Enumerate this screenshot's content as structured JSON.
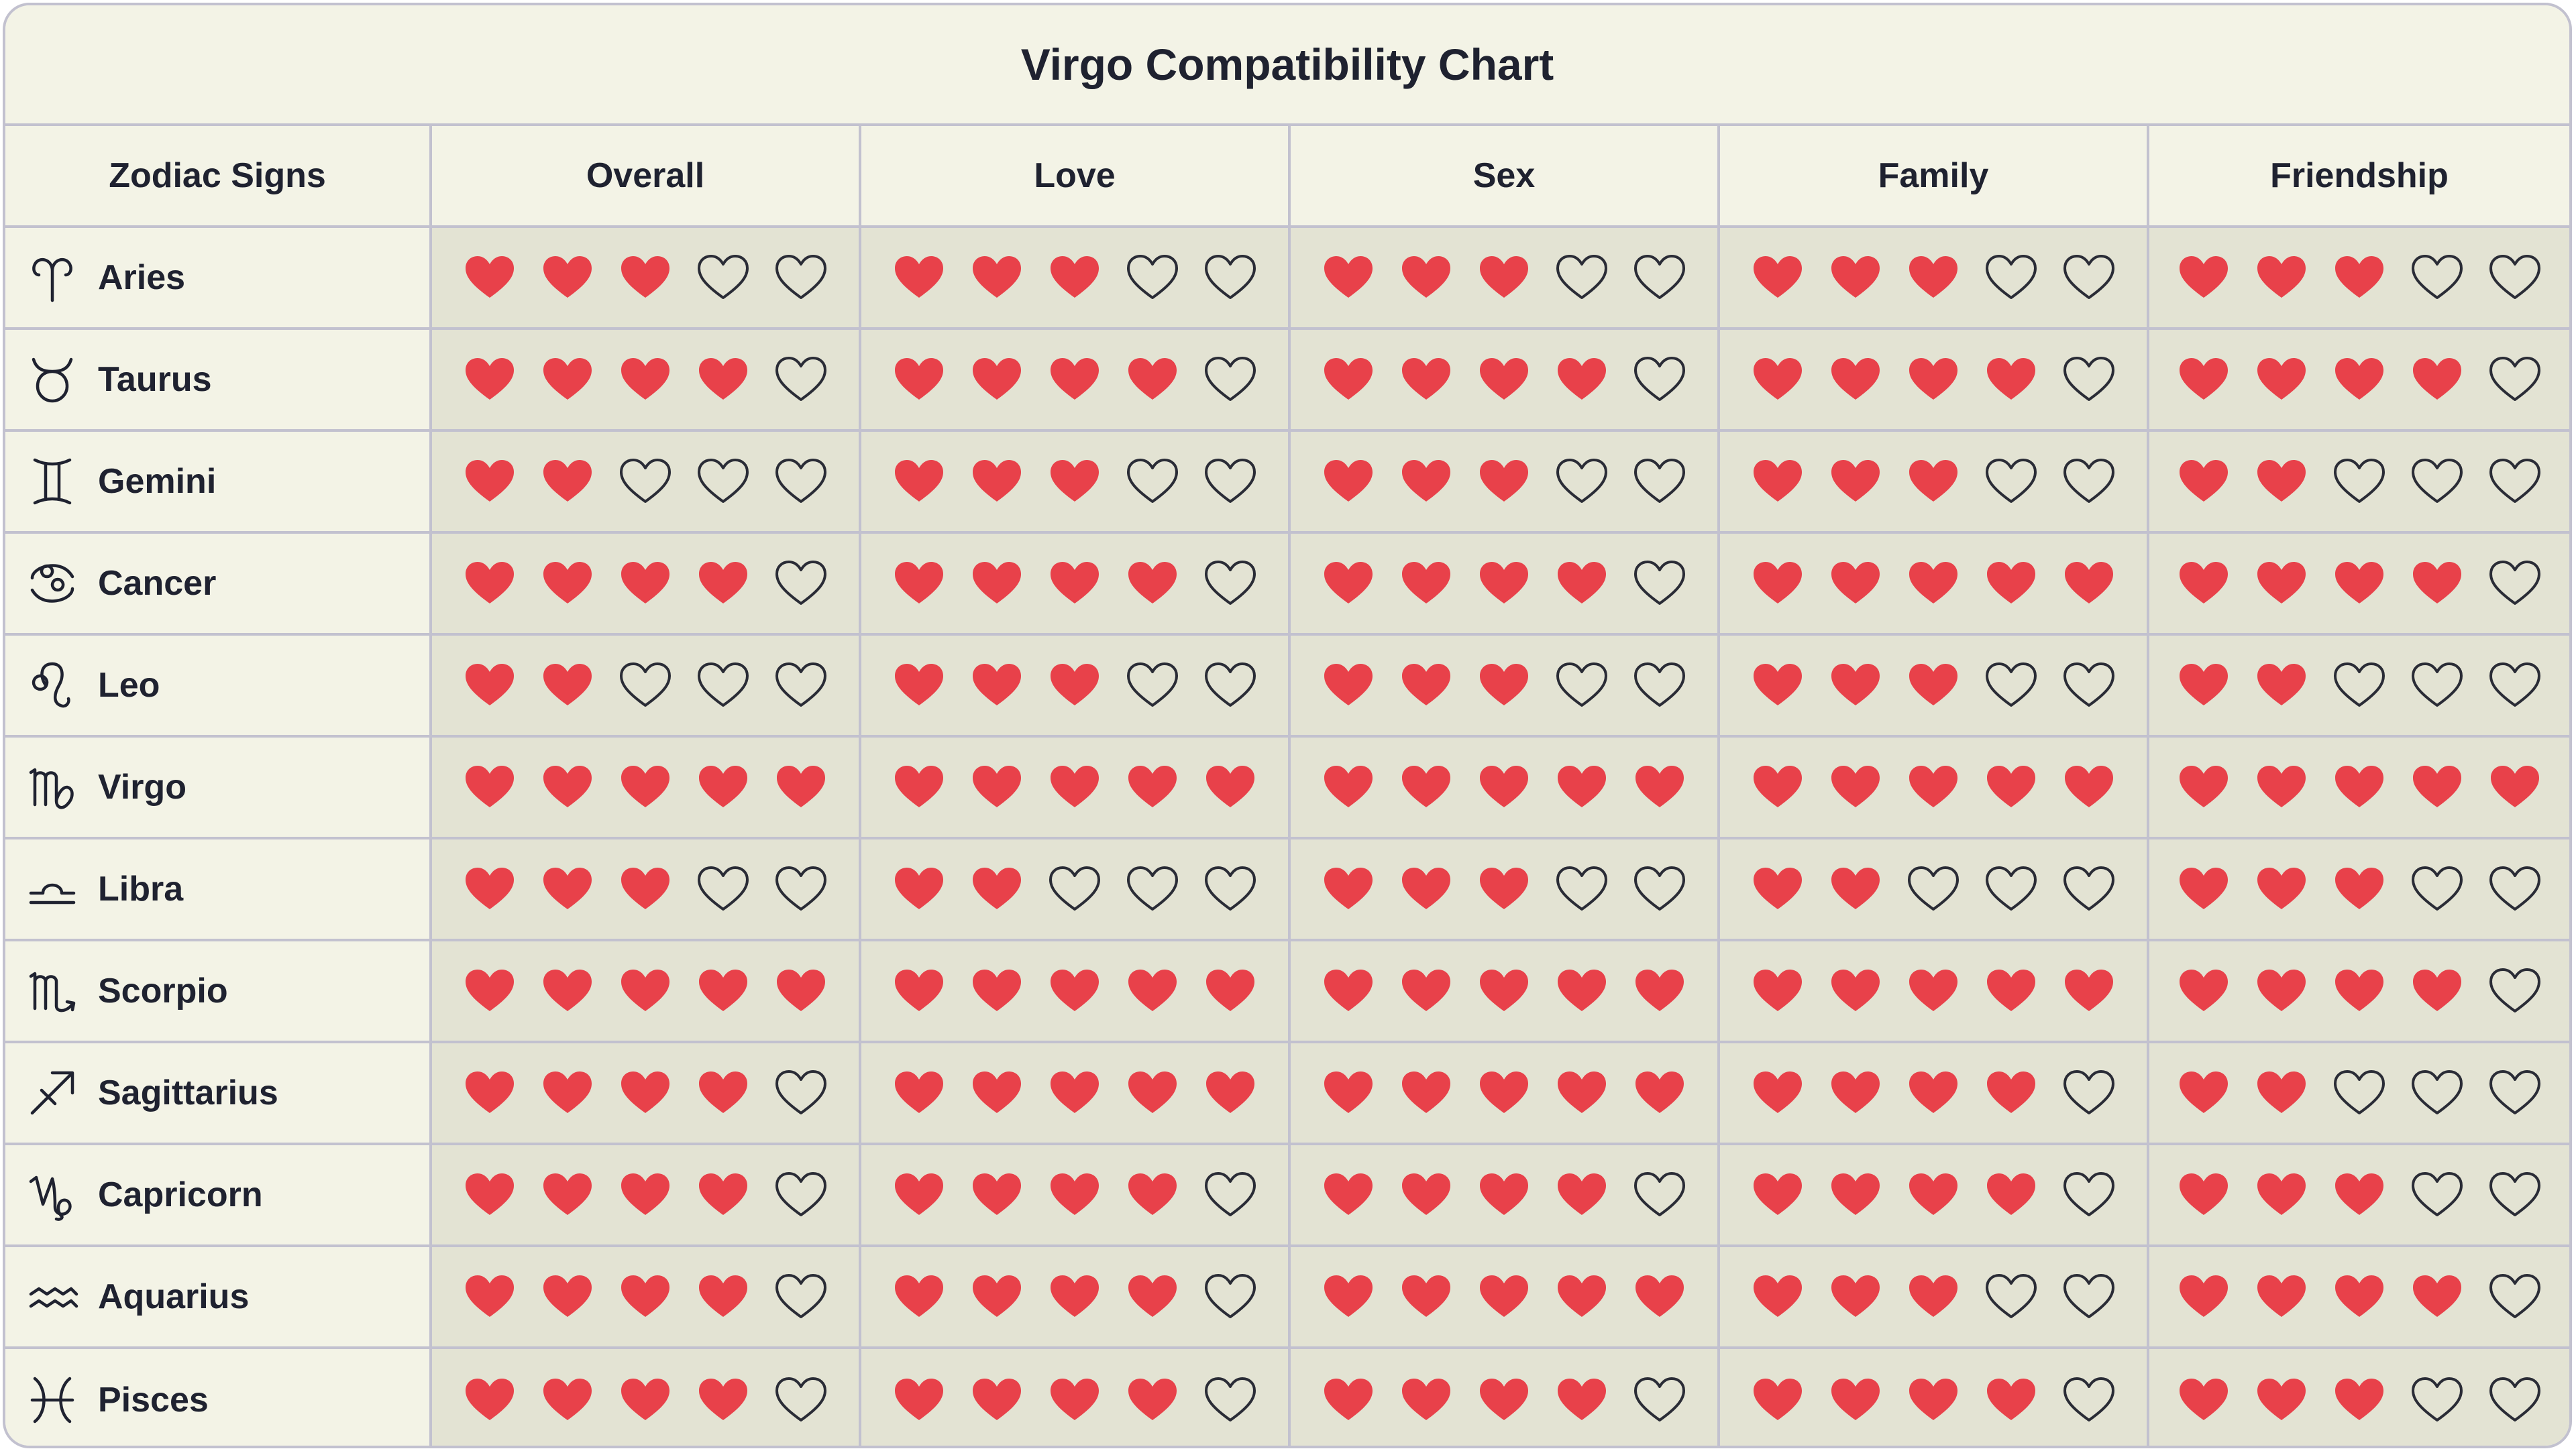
{
  "chart_data": {
    "type": "table",
    "title": "Virgo Compatibility Chart",
    "row_header": "Zodiac Signs",
    "columns": [
      "Overall",
      "Love",
      "Sex",
      "Family",
      "Friendship"
    ],
    "max_rating": 5,
    "rows": [
      {
        "sign": "Aries",
        "icon": "aries-icon",
        "ratings": [
          3,
          3,
          3,
          3,
          3
        ]
      },
      {
        "sign": "Taurus",
        "icon": "taurus-icon",
        "ratings": [
          4,
          4,
          4,
          4,
          4
        ]
      },
      {
        "sign": "Gemini",
        "icon": "gemini-icon",
        "ratings": [
          2,
          3,
          3,
          3,
          2
        ]
      },
      {
        "sign": "Cancer",
        "icon": "cancer-icon",
        "ratings": [
          4,
          4,
          4,
          5,
          4
        ]
      },
      {
        "sign": "Leo",
        "icon": "leo-icon",
        "ratings": [
          2,
          3,
          3,
          3,
          2
        ]
      },
      {
        "sign": "Virgo",
        "icon": "virgo-icon",
        "ratings": [
          5,
          5,
          5,
          5,
          5
        ]
      },
      {
        "sign": "Libra",
        "icon": "libra-icon",
        "ratings": [
          3,
          2,
          3,
          2,
          3
        ]
      },
      {
        "sign": "Scorpio",
        "icon": "scorpio-icon",
        "ratings": [
          5,
          5,
          5,
          5,
          4
        ]
      },
      {
        "sign": "Sagittarius",
        "icon": "sagittarius-icon",
        "ratings": [
          4,
          5,
          5,
          4,
          2
        ]
      },
      {
        "sign": "Capricorn",
        "icon": "capricorn-icon",
        "ratings": [
          4,
          4,
          4,
          4,
          3
        ]
      },
      {
        "sign": "Aquarius",
        "icon": "aquarius-icon",
        "ratings": [
          4,
          4,
          5,
          3,
          4
        ]
      },
      {
        "sign": "Pisces",
        "icon": "pisces-icon",
        "ratings": [
          4,
          4,
          4,
          4,
          3
        ]
      }
    ]
  },
  "colors": {
    "filled_heart": "#e8414a",
    "empty_heart_stroke": "#2a2c36",
    "header_bg": "#f3f3e6",
    "cell_bg": "#e3e3d3",
    "border": "#c2c1cf",
    "text": "#1f2230"
  }
}
